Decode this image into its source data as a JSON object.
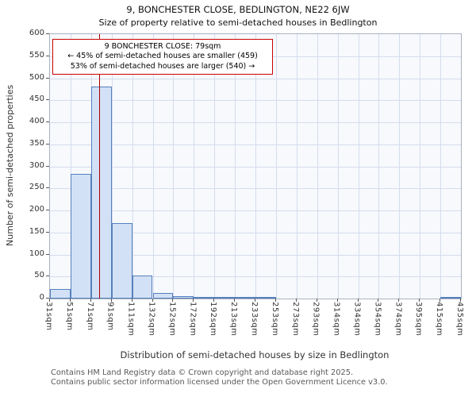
{
  "page": {
    "title": "9, BONCHESTER CLOSE, BEDLINGTON, NE22 6JW",
    "subtitle": "Size of property relative to semi-detached houses in Bedlington",
    "footer_line1": "Contains HM Land Registry data © Crown copyright and database right 2025.",
    "footer_line2": "Contains public sector information licensed under the Open Government Licence v3.0."
  },
  "annotation": {
    "line1": "9 BONCHESTER CLOSE: 79sqm",
    "line2": "← 45% of semi-detached houses are smaller (459)",
    "line3": "53% of semi-detached houses are larger (540) →"
  },
  "chart_data": {
    "type": "bar",
    "title": "9, BONCHESTER CLOSE, BEDLINGTON, NE22 6JW",
    "subtitle": "Size of property relative to semi-detached houses in Bedlington",
    "xlabel": "Distribution of semi-detached houses by size in Bedlington",
    "ylabel": "Number of semi-detached properties",
    "bin_edges_sqm": [
      31,
      51,
      71,
      91,
      111,
      132,
      152,
      172,
      192,
      213,
      233,
      253,
      273,
      293,
      314,
      334,
      354,
      374,
      395,
      415,
      435
    ],
    "tick_labels": [
      "31sqm",
      "51sqm",
      "71sqm",
      "91sqm",
      "111sqm",
      "132sqm",
      "152sqm",
      "172sqm",
      "192sqm",
      "213sqm",
      "233sqm",
      "253sqm",
      "273sqm",
      "293sqm",
      "314sqm",
      "334sqm",
      "354sqm",
      "374sqm",
      "395sqm",
      "415sqm",
      "435sqm"
    ],
    "values": [
      22,
      283,
      481,
      172,
      52,
      12,
      5,
      3,
      2,
      2,
      2,
      0,
      0,
      0,
      0,
      0,
      0,
      0,
      0,
      2
    ],
    "ylim": [
      0,
      600
    ],
    "ytick_step": 50,
    "marker_value_sqm": 79,
    "grid": true,
    "colors": {
      "bar_fill": "#d3e1f6",
      "bar_border": "#5580bd",
      "marker_line": "#aa0000",
      "annotation_border": "#cc0000",
      "grid_line": "#d4dcec"
    }
  }
}
